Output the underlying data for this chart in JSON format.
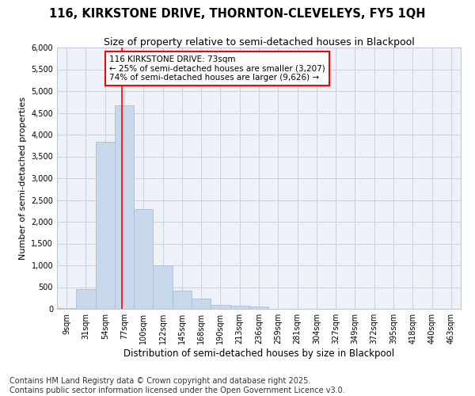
{
  "title": "116, KIRKSTONE DRIVE, THORNTON-CLEVELEYS, FY5 1QH",
  "subtitle": "Size of property relative to semi-detached houses in Blackpool",
  "xlabel": "Distribution of semi-detached houses by size in Blackpool",
  "ylabel": "Number of semi-detached properties",
  "bar_color": "#c8d8ec",
  "bar_edge_color": "#a8c0d8",
  "grid_color": "#c8d0dc",
  "background_color": "#eef2f8",
  "categories": [
    "9sqm",
    "31sqm",
    "54sqm",
    "77sqm",
    "100sqm",
    "122sqm",
    "145sqm",
    "168sqm",
    "190sqm",
    "213sqm",
    "236sqm",
    "259sqm",
    "281sqm",
    "304sqm",
    "327sqm",
    "349sqm",
    "372sqm",
    "395sqm",
    "418sqm",
    "440sqm",
    "463sqm"
  ],
  "values": [
    25,
    450,
    3830,
    4670,
    2300,
    1000,
    420,
    230,
    95,
    70,
    60,
    0,
    0,
    0,
    0,
    0,
    0,
    0,
    0,
    0,
    0
  ],
  "ylim": [
    0,
    6000
  ],
  "yticks": [
    0,
    500,
    1000,
    1500,
    2000,
    2500,
    3000,
    3500,
    4000,
    4500,
    5000,
    5500,
    6000
  ],
  "property_label": "116 KIRKSTONE DRIVE: 73sqm",
  "pct_smaller": 25,
  "pct_smaller_count": "3,207",
  "pct_larger": 74,
  "pct_larger_count": "9,626",
  "vline_x_idx": 2.88,
  "footnote": "Contains HM Land Registry data © Crown copyright and database right 2025.\nContains public sector information licensed under the Open Government Licence v3.0.",
  "footnote_fontsize": 7,
  "title_fontsize": 10.5,
  "subtitle_fontsize": 9,
  "xlabel_fontsize": 8.5,
  "ylabel_fontsize": 8,
  "tick_fontsize": 7,
  "annot_fontsize": 7.5
}
